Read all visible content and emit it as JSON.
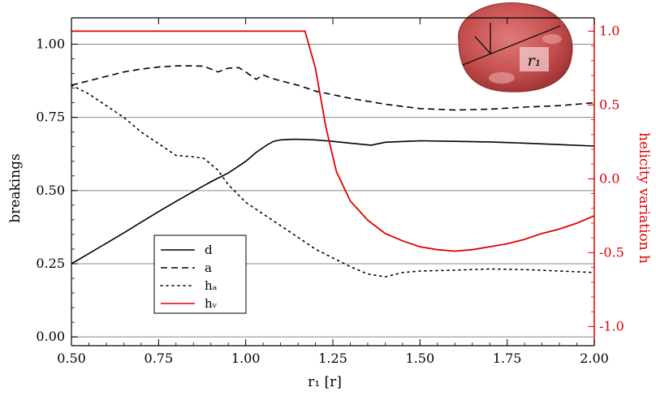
{
  "chart_data": {
    "type": "line",
    "xlabel": "r₁ [r]",
    "ylabel": "breakings",
    "y2label": "helicity variation h",
    "xlim": [
      0.5,
      2.0
    ],
    "ylim": [
      -0.03,
      1.09
    ],
    "y2lim": [
      -1.13,
      1.09
    ],
    "x_ticks": [
      "0.50",
      "0.75",
      "1.00",
      "1.25",
      "1.50",
      "1.75",
      "2.00"
    ],
    "y_ticks": [
      "0.00",
      "0.25",
      "0.50",
      "0.75",
      "1.00"
    ],
    "y2_ticks": [
      "1.0",
      "0.5",
      "0.0",
      "-0.5",
      "-1.0"
    ],
    "grid": "horizontal",
    "legend_position": "lower-left",
    "inset_label": "r₁",
    "series": [
      {
        "name": "d",
        "axis": "left",
        "color": "#000000",
        "style": "solid",
        "x": [
          0.5,
          0.55,
          0.6,
          0.65,
          0.7,
          0.75,
          0.8,
          0.85,
          0.9,
          0.95,
          1.0,
          1.03,
          1.06,
          1.08,
          1.1,
          1.13,
          1.15,
          1.2,
          1.25,
          1.3,
          1.36,
          1.4,
          1.5,
          1.6,
          1.7,
          1.8,
          1.9,
          2.0
        ],
        "y": [
          0.25,
          0.285,
          0.32,
          0.355,
          0.392,
          0.428,
          0.463,
          0.497,
          0.53,
          0.56,
          0.6,
          0.63,
          0.655,
          0.668,
          0.673,
          0.675,
          0.675,
          0.673,
          0.668,
          0.662,
          0.655,
          0.665,
          0.67,
          0.668,
          0.666,
          0.662,
          0.657,
          0.652
        ]
      },
      {
        "name": "a",
        "axis": "left",
        "color": "#000000",
        "style": "dashed",
        "x": [
          0.5,
          0.55,
          0.6,
          0.65,
          0.7,
          0.75,
          0.8,
          0.85,
          0.88,
          0.92,
          0.95,
          0.98,
          1.0,
          1.03,
          1.05,
          1.07,
          1.1,
          1.15,
          1.2,
          1.3,
          1.4,
          1.5,
          1.6,
          1.7,
          1.8,
          1.9,
          2.0
        ],
        "y": [
          0.86,
          0.875,
          0.89,
          0.905,
          0.915,
          0.922,
          0.926,
          0.926,
          0.925,
          0.905,
          0.918,
          0.92,
          0.905,
          0.88,
          0.895,
          0.885,
          0.875,
          0.86,
          0.84,
          0.815,
          0.795,
          0.78,
          0.775,
          0.778,
          0.785,
          0.79,
          0.8
        ]
      },
      {
        "name": "hₐ",
        "axis": "left",
        "color": "#000000",
        "style": "dotted",
        "x": [
          0.5,
          0.55,
          0.6,
          0.65,
          0.7,
          0.75,
          0.8,
          0.85,
          0.88,
          0.92,
          0.95,
          1.0,
          1.05,
          1.1,
          1.15,
          1.2,
          1.25,
          1.3,
          1.35,
          1.4,
          1.45,
          1.5,
          1.6,
          1.7,
          1.8,
          1.9,
          2.0
        ],
        "y": [
          0.86,
          0.83,
          0.79,
          0.75,
          0.7,
          0.66,
          0.62,
          0.615,
          0.61,
          0.57,
          0.52,
          0.46,
          0.42,
          0.38,
          0.34,
          0.3,
          0.27,
          0.24,
          0.215,
          0.205,
          0.22,
          0.225,
          0.228,
          0.232,
          0.23,
          0.225,
          0.22
        ]
      },
      {
        "name": "hᵥ",
        "axis": "right",
        "color": "#e00000",
        "style": "solid",
        "x": [
          0.5,
          0.6,
          0.7,
          0.8,
          0.9,
          1.0,
          1.1,
          1.17,
          1.2,
          1.23,
          1.26,
          1.3,
          1.35,
          1.4,
          1.45,
          1.5,
          1.55,
          1.6,
          1.65,
          1.7,
          1.75,
          1.8,
          1.85,
          1.9,
          1.95,
          2.0
        ],
        "y": [
          1.0,
          1.0,
          1.0,
          1.0,
          1.0,
          1.0,
          1.0,
          1.0,
          0.75,
          0.35,
          0.05,
          -0.15,
          -0.28,
          -0.37,
          -0.42,
          -0.46,
          -0.48,
          -0.49,
          -0.48,
          -0.46,
          -0.44,
          -0.41,
          -0.37,
          -0.34,
          -0.3,
          -0.25
        ]
      }
    ]
  }
}
